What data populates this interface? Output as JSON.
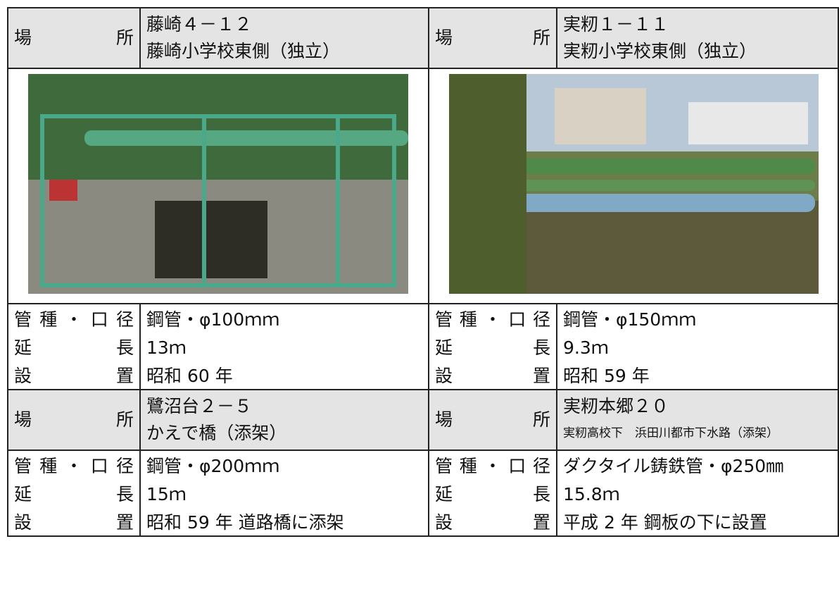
{
  "sites": [
    {
      "location_label": "場所",
      "location": [
        "藤崎４－１２",
        "藤崎小学校東側（独立）"
      ],
      "details": [
        {
          "label": "管種・口径",
          "value": "鋼管・φ100ｍｍ"
        },
        {
          "label": "延長",
          "value": "13ｍ"
        },
        {
          "label": "設置",
          "value": "昭和 60 年"
        }
      ]
    },
    {
      "location_label": "場所",
      "location": [
        "実籾１－１１",
        "実籾小学校東側（独立）"
      ],
      "details": [
        {
          "label": "管種・口径",
          "value": "鋼管・φ150ｍｍ"
        },
        {
          "label": "延長",
          "value": "9.3ｍ"
        },
        {
          "label": "設置",
          "value": "昭和 59 年"
        }
      ]
    },
    {
      "location_label": "場所",
      "location": [
        "鷺沼台２－５",
        "かえで橋（添架）"
      ],
      "details": [
        {
          "label": "管種・口径",
          "value": "鋼管・φ200ｍｍ"
        },
        {
          "label": "延長",
          "value": "15ｍ"
        },
        {
          "label": "設置",
          "value": "昭和 59 年 道路橋に添架"
        }
      ]
    },
    {
      "location_label": "場所",
      "location": [
        "実籾本郷２０",
        "実籾高校下　浜田川都市下水路（添架）"
      ],
      "details": [
        {
          "label": "管種・口径",
          "value": "ダクタイル鋳鉄管・φ250㎜"
        },
        {
          "label": "延長",
          "value": "15.8ｍ"
        },
        {
          "label": "設置",
          "value": "平成 2 年 鋼板の下に設置"
        }
      ]
    }
  ]
}
